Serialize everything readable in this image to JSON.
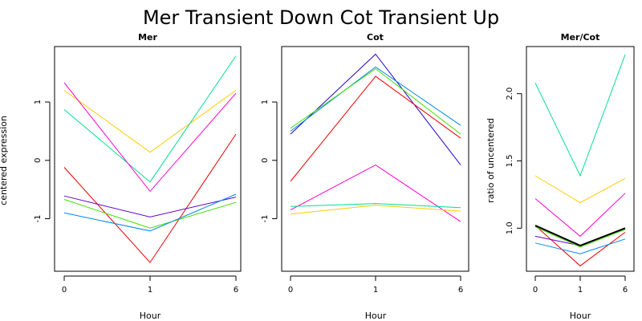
{
  "title": "Mer Transient Down Cot Transient Up",
  "chart_data": [
    {
      "type": "line",
      "title": "Mer",
      "xlabel": "Hour",
      "ylabel": "centered expression",
      "categories": [
        "0",
        "1",
        "6"
      ],
      "yticks": [
        -1,
        0,
        1
      ],
      "ylim": [
        -1.9,
        1.95
      ],
      "series": [
        {
          "color": "#ffcc00",
          "values": [
            1.2,
            0.14,
            1.2
          ]
        },
        {
          "color": "#00e090",
          "values": [
            0.87,
            -0.37,
            1.79
          ]
        },
        {
          "color": "#ff00cc",
          "values": [
            1.33,
            -0.53,
            1.15
          ]
        },
        {
          "color": "#ee0000",
          "values": [
            -0.12,
            -1.75,
            0.45
          ]
        },
        {
          "color": "#6600cc",
          "values": [
            -0.61,
            -0.97,
            -0.63
          ]
        },
        {
          "color": "#44dd00",
          "values": [
            -0.67,
            -1.16,
            -0.72
          ]
        },
        {
          "color": "#0088ee",
          "values": [
            -0.9,
            -1.21,
            -0.58
          ]
        }
      ]
    },
    {
      "type": "line",
      "title": "Cot",
      "xlabel": "Hour",
      "ylabel": "",
      "categories": [
        "0",
        "1",
        "6"
      ],
      "yticks": [
        -1,
        0,
        1
      ],
      "ylim": [
        -1.9,
        1.95
      ],
      "series": [
        {
          "color": "#2200cc",
          "values": [
            0.45,
            1.82,
            -0.08
          ]
        },
        {
          "color": "#0088ee",
          "values": [
            0.5,
            1.6,
            0.6
          ]
        },
        {
          "color": "#44dd00",
          "values": [
            0.55,
            1.57,
            0.45
          ]
        },
        {
          "color": "#ee0000",
          "values": [
            -0.36,
            1.44,
            0.38
          ]
        },
        {
          "color": "#ff00cc",
          "values": [
            -0.85,
            -0.08,
            -1.05
          ]
        },
        {
          "color": "#00e090",
          "values": [
            -0.79,
            -0.74,
            -0.81
          ]
        },
        {
          "color": "#ffcc00",
          "values": [
            -0.92,
            -0.77,
            -0.87
          ]
        }
      ]
    },
    {
      "type": "line",
      "title": "Mer/Cot",
      "xlabel": "Hour",
      "ylabel": "ratio of uncentered",
      "categories": [
        "0",
        "1",
        "6"
      ],
      "yticks": [
        1.0,
        1.5,
        2.0
      ],
      "ytick_labels": [
        "1.0",
        "1.5",
        "2.0"
      ],
      "ylim": [
        0.68,
        2.35
      ],
      "series": [
        {
          "color": "#00e090",
          "values": [
            2.08,
            1.39,
            2.29
          ]
        },
        {
          "color": "#ffcc00",
          "values": [
            1.39,
            1.19,
            1.37
          ]
        },
        {
          "color": "#ff00cc",
          "values": [
            1.22,
            0.94,
            1.26
          ]
        },
        {
          "color": "#ee0000",
          "values": [
            1.02,
            0.72,
            0.97
          ]
        },
        {
          "color": "#6600cc",
          "values": [
            0.94,
            0.87,
            1.0
          ]
        },
        {
          "color": "#44dd00",
          "values": [
            1.01,
            0.86,
            0.99
          ]
        },
        {
          "color": "#0088ee",
          "values": [
            0.89,
            0.81,
            0.92
          ]
        },
        {
          "color": "#000000",
          "values": [
            1.02,
            0.87,
            1.0
          ]
        }
      ]
    }
  ]
}
